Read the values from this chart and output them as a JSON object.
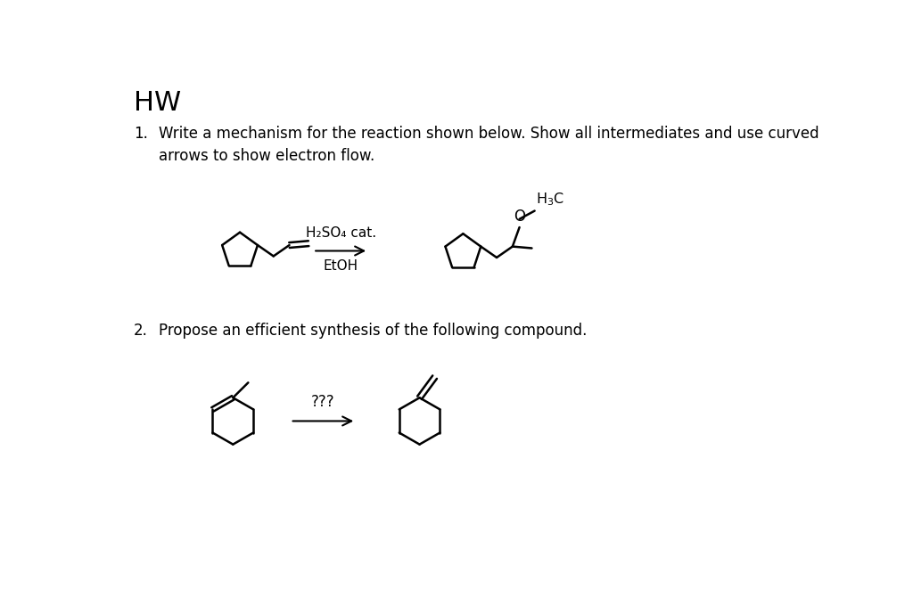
{
  "title": "HW",
  "item1_line1": "Write a mechanism for the reaction shown below. Show all intermediates and use curved",
  "item1_line2": "arrows to show electron flow.",
  "item2_text": "Propose an efficient synthesis of the following compound.",
  "reagent_top": "H₂SO₄ cat.",
  "reagent_bot": "EtOH",
  "arrow_label": "???",
  "background": "#ffffff",
  "text_color": "#000000",
  "lw": 1.8,
  "title_fs": 22,
  "body_fs": 12,
  "chem_fs": 11
}
